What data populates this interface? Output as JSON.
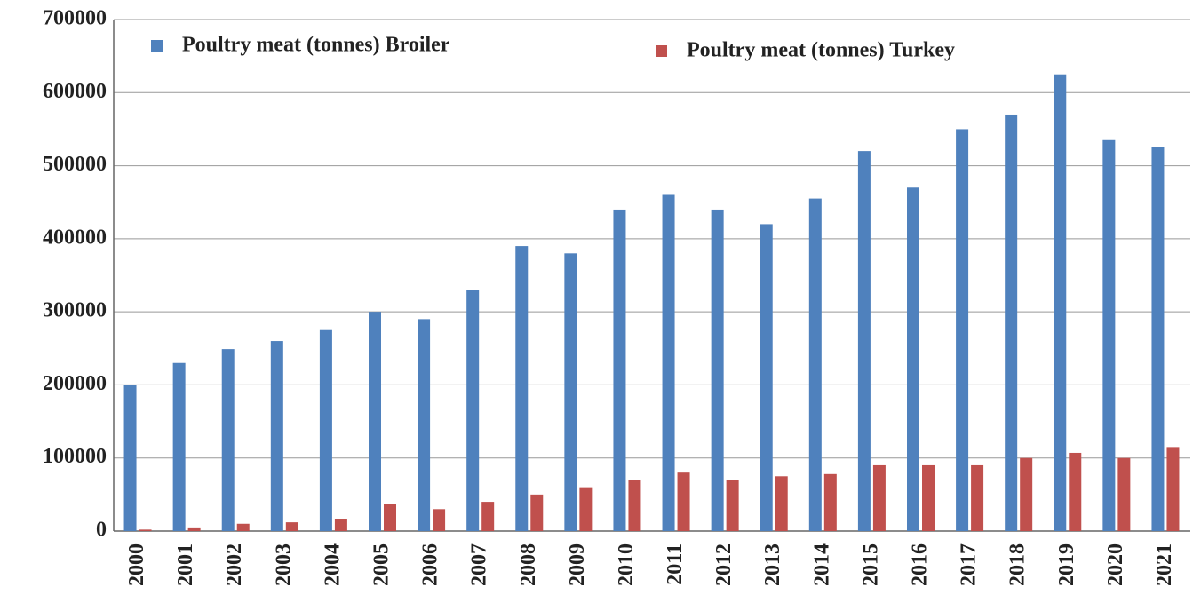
{
  "chart_data": {
    "type": "bar",
    "categories": [
      "2000",
      "2001",
      "2002",
      "2003",
      "2004",
      "2005",
      "2006",
      "2007",
      "2008",
      "2009",
      "2010",
      "2011",
      "2012",
      "2013",
      "2014",
      "2015",
      "2016",
      "2017",
      "2018",
      "2019",
      "2020",
      "2021"
    ],
    "series": [
      {
        "name": "Poultry meat (tonnes) Broiler",
        "color": "#4f81bd",
        "values": [
          200000,
          230000,
          249000,
          260000,
          275000,
          300000,
          290000,
          330000,
          390000,
          380000,
          440000,
          460000,
          440000,
          420000,
          455000,
          520000,
          470000,
          550000,
          570000,
          625000,
          535000,
          525000
        ]
      },
      {
        "name": "Poultry meat (tonnes) Turkey",
        "color": "#c0504d",
        "values": [
          2000,
          5000,
          10000,
          12000,
          17000,
          37000,
          30000,
          40000,
          50000,
          60000,
          70000,
          80000,
          70000,
          75000,
          78000,
          90000,
          90000,
          90000,
          100000,
          107000,
          100000,
          115000
        ]
      }
    ],
    "ylim": [
      0,
      700000
    ],
    "yticks": [
      0,
      100000,
      200000,
      300000,
      400000,
      500000,
      600000,
      700000
    ],
    "grid": true,
    "legend": "top"
  }
}
